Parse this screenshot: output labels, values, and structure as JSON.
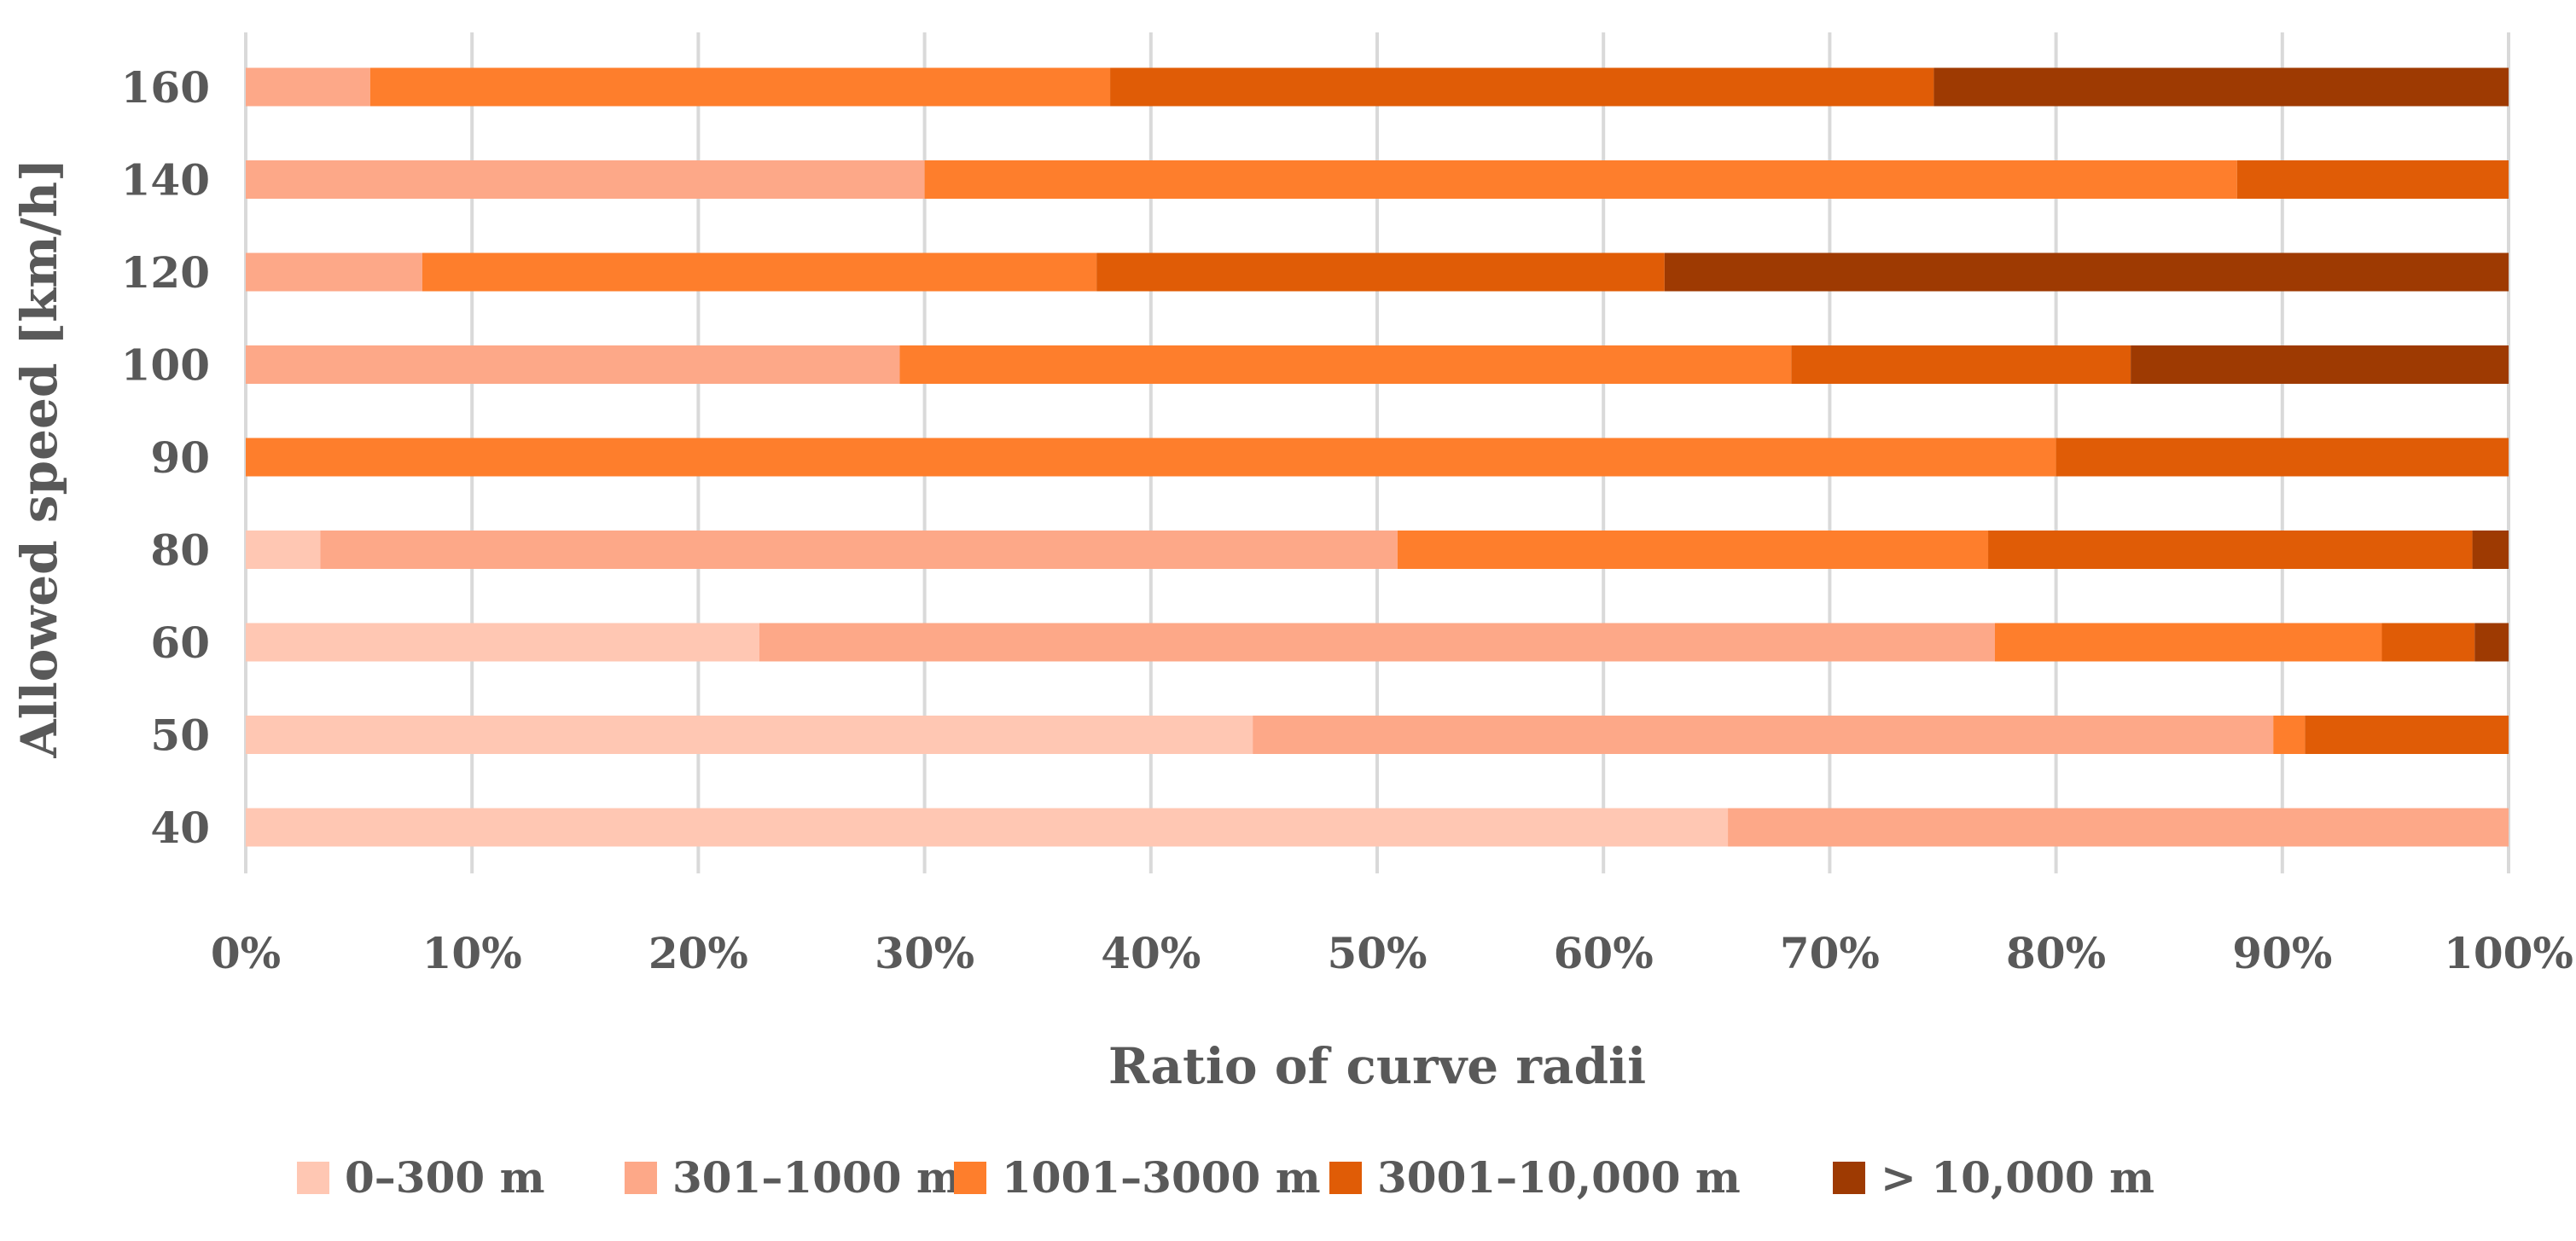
{
  "chart_data": {
    "type": "bar",
    "orientation": "horizontal",
    "stacking": "percent",
    "xlabel": "Ratio of curve radii",
    "ylabel": "Allowed speed [km/h]",
    "xlim": [
      0,
      100
    ],
    "x_ticks": [
      "0%",
      "10%",
      "20%",
      "30%",
      "40%",
      "50%",
      "60%",
      "70%",
      "80%",
      "90%",
      "100%"
    ],
    "grid": "vertical",
    "legend_position": "bottom",
    "categories": [
      "160",
      "140",
      "120",
      "100",
      "90",
      "80",
      "60",
      "50",
      "40"
    ],
    "series": [
      {
        "name": "0–300 m",
        "color": "#FFC7B3",
        "values": [
          0,
          0,
          0,
          0,
          0,
          3.3,
          22.7,
          44.5,
          65.5
        ]
      },
      {
        "name": "301–1000 m",
        "color": "#FDA888",
        "values": [
          5.5,
          30.0,
          7.8,
          28.9,
          0,
          47.6,
          54.6,
          45.1,
          34.5
        ]
      },
      {
        "name": "1001–3000 m",
        "color": "#FE7E2C",
        "values": [
          32.7,
          58.0,
          29.8,
          39.4,
          80.0,
          26.1,
          17.1,
          1.4,
          0
        ]
      },
      {
        "name": "3001–10,000 m",
        "color": "#E05C06",
        "values": [
          36.4,
          12.0,
          25.1,
          15.0,
          20.0,
          21.4,
          4.1,
          9.0,
          0
        ]
      },
      {
        "name": "> 10,000 m",
        "color": "#9E3A02",
        "values": [
          25.4,
          0,
          37.3,
          16.7,
          0,
          1.6,
          1.5,
          0,
          0
        ]
      }
    ]
  }
}
